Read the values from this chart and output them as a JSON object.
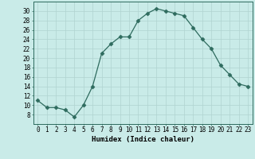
{
  "x": [
    0,
    1,
    2,
    3,
    4,
    5,
    6,
    7,
    8,
    9,
    10,
    11,
    12,
    13,
    14,
    15,
    16,
    17,
    18,
    19,
    20,
    21,
    22,
    23
  ],
  "y": [
    11,
    9.5,
    9.5,
    9,
    7.5,
    10,
    14,
    21,
    23,
    24.5,
    24.5,
    28,
    29.5,
    30.5,
    30,
    29.5,
    29,
    26.5,
    24,
    22,
    18.5,
    16.5,
    14.5,
    14
  ],
  "xlabel": "Humidex (Indice chaleur)",
  "line_color": "#2e6b5e",
  "marker": "D",
  "marker_size": 2.5,
  "bg_color": "#c9ebe8",
  "grid_color": "#b0d4d0",
  "xlim": [
    -0.5,
    23.5
  ],
  "ylim": [
    6,
    32
  ],
  "yticks": [
    8,
    10,
    12,
    14,
    16,
    18,
    20,
    22,
    24,
    26,
    28,
    30
  ],
  "xtick_labels": [
    "0",
    "1",
    "2",
    "3",
    "4",
    "5",
    "6",
    "7",
    "8",
    "9",
    "10",
    "11",
    "12",
    "13",
    "14",
    "15",
    "16",
    "17",
    "18",
    "19",
    "20",
    "21",
    "22",
    "23"
  ],
  "label_fontsize": 6.5,
  "tick_fontsize": 5.5
}
